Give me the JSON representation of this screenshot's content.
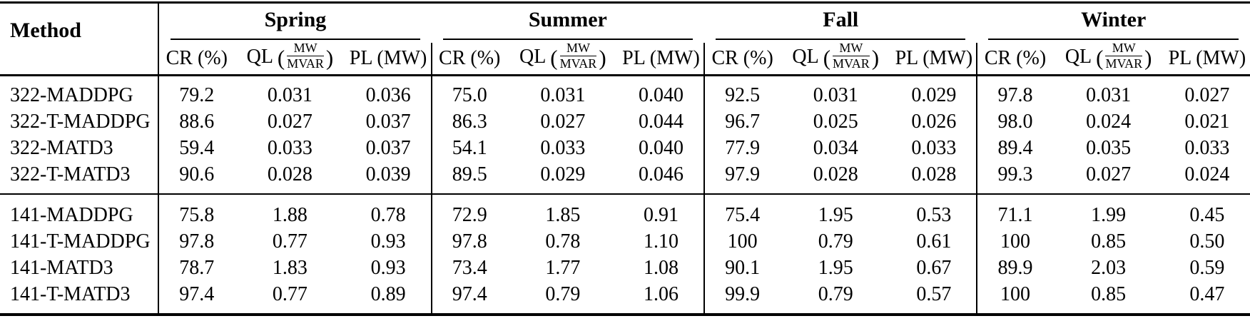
{
  "table": {
    "method_header": "Method",
    "seasons": [
      "Spring",
      "Summer",
      "Fall",
      "Winter"
    ],
    "sub_headers": {
      "cr": "CR (%)",
      "ql_label": "QL",
      "ql_open": "(",
      "ql_num": "MW",
      "ql_den": "MVAR",
      "ql_close": ")",
      "pl": "PL (MW)"
    },
    "groups": [
      {
        "rows": [
          {
            "method": "322-MADDPG",
            "values": [
              "79.2",
              "0.031",
              "0.036",
              "75.0",
              "0.031",
              "0.040",
              "92.5",
              "0.031",
              "0.029",
              "97.8",
              "0.031",
              "0.027"
            ]
          },
          {
            "method": "322-T-MADDPG",
            "values": [
              "88.6",
              "0.027",
              "0.037",
              "86.3",
              "0.027",
              "0.044",
              "96.7",
              "0.025",
              "0.026",
              "98.0",
              "0.024",
              "0.021"
            ]
          },
          {
            "method": "322-MATD3",
            "values": [
              "59.4",
              "0.033",
              "0.037",
              "54.1",
              "0.033",
              "0.040",
              "77.9",
              "0.034",
              "0.033",
              "89.4",
              "0.035",
              "0.033"
            ]
          },
          {
            "method": "322-T-MATD3",
            "values": [
              "90.6",
              "0.028",
              "0.039",
              "89.5",
              "0.029",
              "0.046",
              "97.9",
              "0.028",
              "0.028",
              "99.3",
              "0.027",
              "0.024"
            ]
          }
        ]
      },
      {
        "rows": [
          {
            "method": "141-MADDPG",
            "values": [
              "75.8",
              "1.88",
              "0.78",
              "72.9",
              "1.85",
              "0.91",
              "75.4",
              "1.95",
              "0.53",
              "71.1",
              "1.99",
              "0.45"
            ]
          },
          {
            "method": "141-T-MADDPG",
            "values": [
              "97.8",
              "0.77",
              "0.93",
              "97.8",
              "0.78",
              "1.10",
              "100",
              "0.79",
              "0.61",
              "100",
              "0.85",
              "0.50"
            ]
          },
          {
            "method": "141-MATD3",
            "values": [
              "78.7",
              "1.83",
              "0.93",
              "73.4",
              "1.77",
              "1.08",
              "90.1",
              "1.95",
              "0.67",
              "89.9",
              "2.03",
              "0.59"
            ]
          },
          {
            "method": "141-T-MATD3",
            "values": [
              "97.4",
              "0.77",
              "0.89",
              "97.4",
              "0.79",
              "1.06",
              "99.9",
              "0.79",
              "0.57",
              "100",
              "0.85",
              "0.47"
            ]
          }
        ]
      }
    ],
    "colors": {
      "background": "#ffffff",
      "text": "#000000",
      "rule": "#000000"
    }
  },
  "chart_data": {
    "type": "table",
    "column_groups": [
      "Spring",
      "Summer",
      "Fall",
      "Winter"
    ],
    "columns_per_group": [
      "CR (%)",
      "QL (MW/MVAR)",
      "PL (MW)"
    ],
    "row_header": "Method",
    "rows": [
      [
        "322-MADDPG",
        "79.2",
        "0.031",
        "0.036",
        "75.0",
        "0.031",
        "0.040",
        "92.5",
        "0.031",
        "0.029",
        "97.8",
        "0.031",
        "0.027"
      ],
      [
        "322-T-MADDPG",
        "88.6",
        "0.027",
        "0.037",
        "86.3",
        "0.027",
        "0.044",
        "96.7",
        "0.025",
        "0.026",
        "98.0",
        "0.024",
        "0.021"
      ],
      [
        "322-MATD3",
        "59.4",
        "0.033",
        "0.037",
        "54.1",
        "0.033",
        "0.040",
        "77.9",
        "0.034",
        "0.033",
        "89.4",
        "0.035",
        "0.033"
      ],
      [
        "322-T-MATD3",
        "90.6",
        "0.028",
        "0.039",
        "89.5",
        "0.029",
        "0.046",
        "97.9",
        "0.028",
        "0.028",
        "99.3",
        "0.027",
        "0.024"
      ],
      [
        "141-MADDPG",
        "75.8",
        "1.88",
        "0.78",
        "72.9",
        "1.85",
        "0.91",
        "75.4",
        "1.95",
        "0.53",
        "71.1",
        "1.99",
        "0.45"
      ],
      [
        "141-T-MADDPG",
        "97.8",
        "0.77",
        "0.93",
        "97.8",
        "0.78",
        "1.10",
        "100",
        "0.79",
        "0.61",
        "100",
        "0.85",
        "0.50"
      ],
      [
        "141-MATD3",
        "78.7",
        "1.83",
        "0.93",
        "73.4",
        "1.77",
        "1.08",
        "90.1",
        "1.95",
        "0.67",
        "89.9",
        "2.03",
        "0.59"
      ],
      [
        "141-T-MATD3",
        "97.4",
        "0.77",
        "0.89",
        "97.4",
        "0.79",
        "1.06",
        "99.9",
        "0.79",
        "0.57",
        "100",
        "0.85",
        "0.47"
      ]
    ]
  }
}
